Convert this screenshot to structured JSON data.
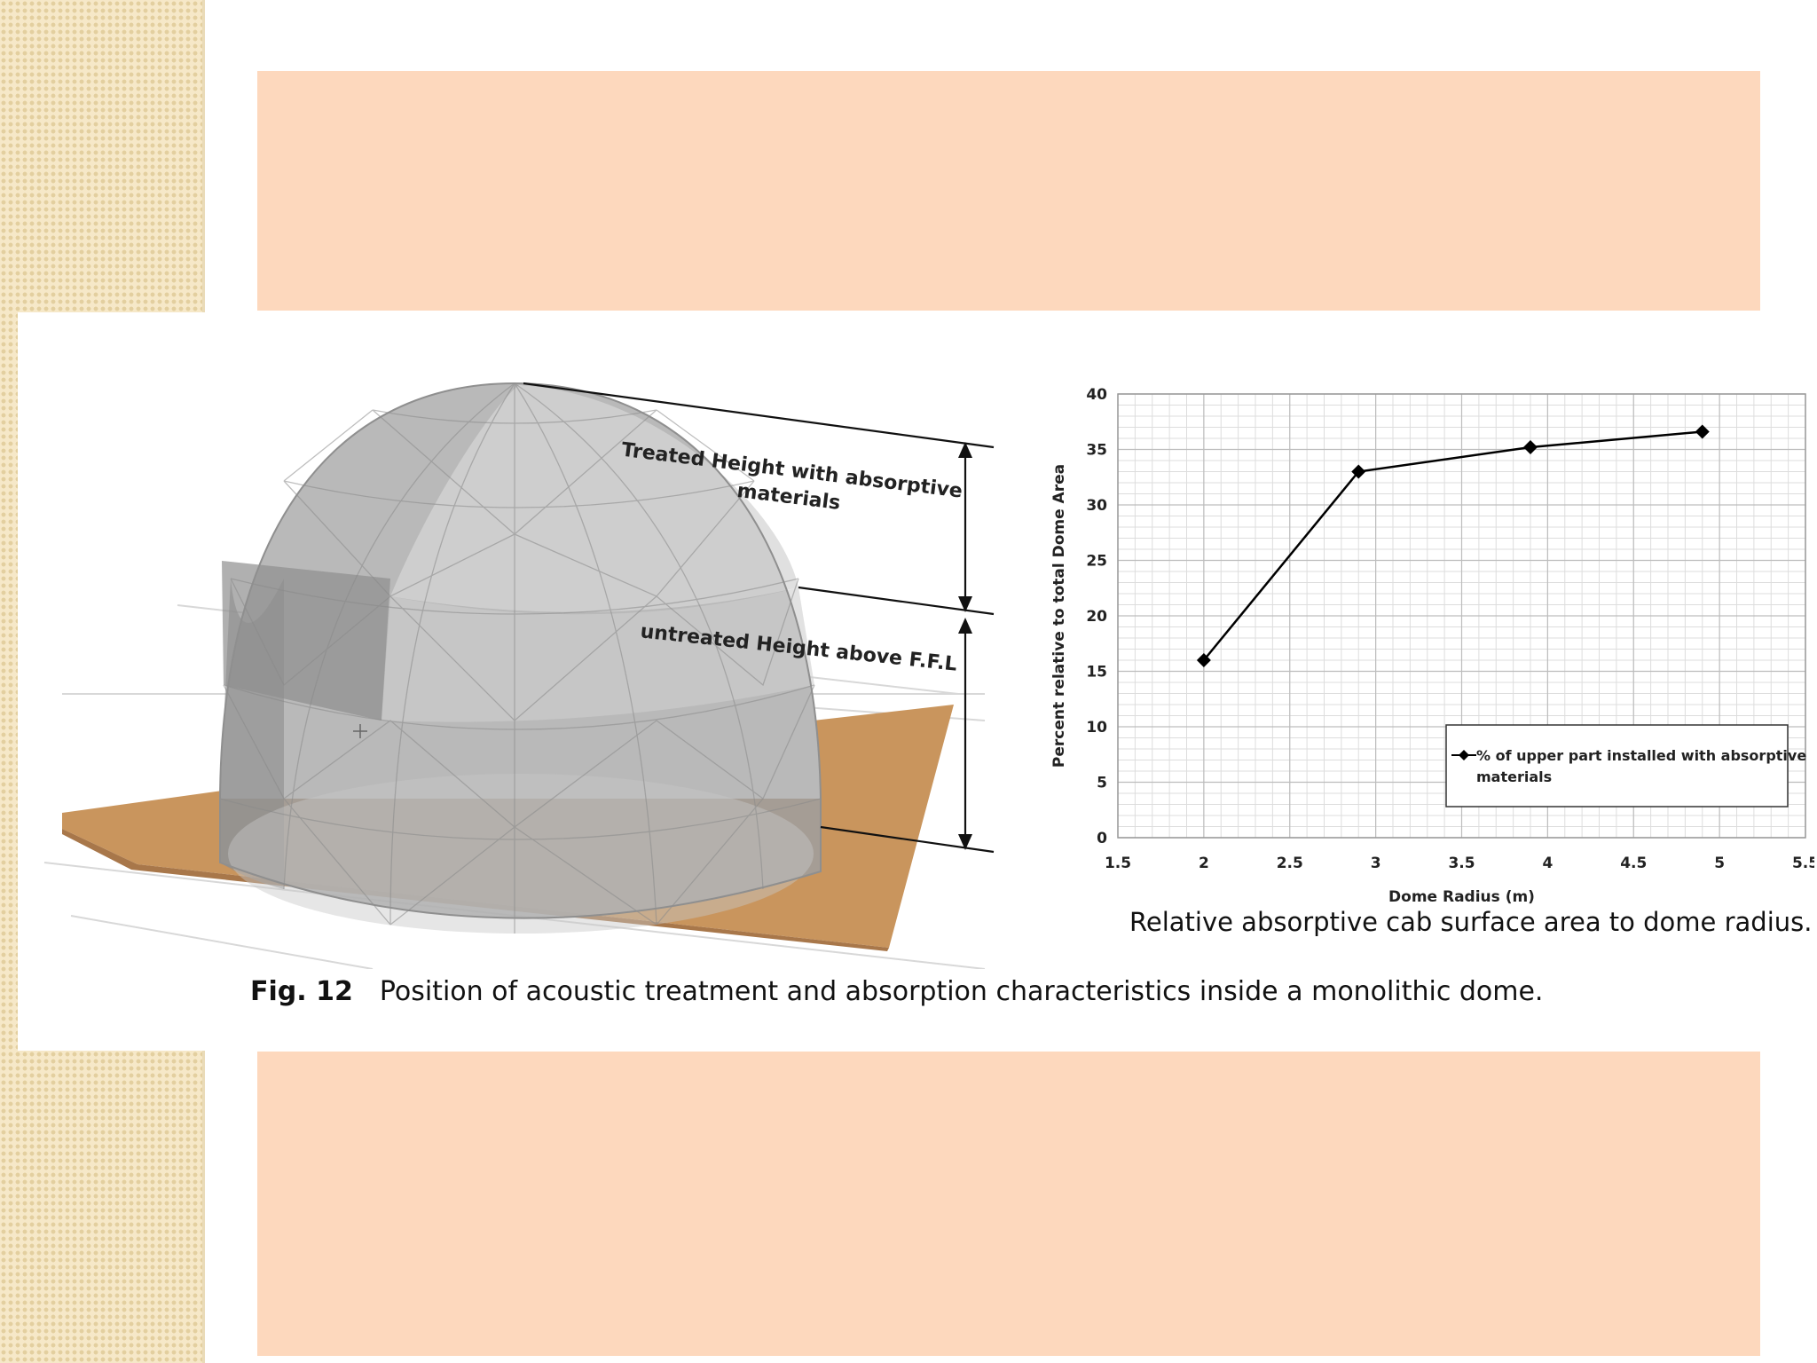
{
  "slide": {
    "accent_colors": {
      "band": "#fdd8bd",
      "strip": "#f6e8c8",
      "floor": "#c9955d"
    }
  },
  "dome": {
    "treated_label": [
      "Treated Height with absorptive",
      "materials"
    ],
    "untreated_label": "untreated Height above F.F.L"
  },
  "chart_data": {
    "type": "line",
    "title": "",
    "xlabel": "Dome Radius (m)",
    "ylabel": "Percent relative to total Dome Area",
    "xlim": [
      1.5,
      5.5
    ],
    "ylim": [
      0,
      40
    ],
    "xticks": [
      "1.5",
      "2",
      "2.5",
      "3",
      "3.5",
      "4",
      "4.5",
      "5",
      "5.5"
    ],
    "yticks": [
      "0",
      "5",
      "10",
      "15",
      "20",
      "25",
      "30",
      "35",
      "40"
    ],
    "grid": true,
    "legend_position": "bottom-right",
    "series": [
      {
        "name": "% of upper part installed with absorptive materials",
        "legend_lines": [
          "% of upper part installed with absorptive",
          "materials"
        ],
        "marker": "diamond",
        "color": "#000000",
        "x": [
          2,
          2.9,
          3.9,
          4.9
        ],
        "y": [
          16,
          33,
          35.2,
          36.6
        ]
      }
    ]
  },
  "captions": {
    "chart_caption": "Relative absorptive cab surface area to dome radius.",
    "figure_label": "Fig. 12",
    "figure_text": "Position of acoustic treatment and absorption characteristics inside a monolithic dome."
  }
}
